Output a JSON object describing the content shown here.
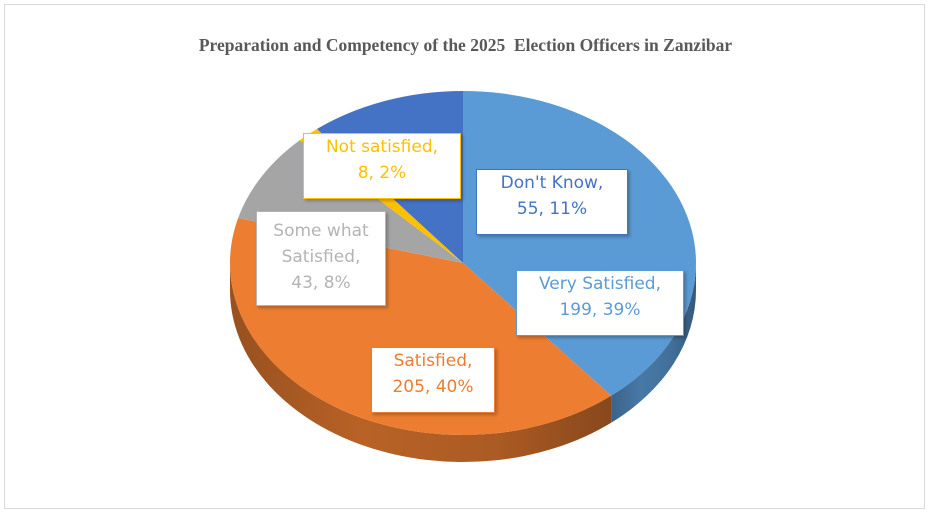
{
  "chart_data": {
    "type": "pie",
    "title": "Preparation and Competency of the 2025  Election Officers in Zanzibar",
    "slices": [
      {
        "name": "Very  Satisfied",
        "value": 199,
        "percent": "39%",
        "color": "#5b9bd5",
        "label_color": "#5b9bd5"
      },
      {
        "name": "Satisfied",
        "value": 205,
        "percent": "40%",
        "color": "#ed7d31",
        "label_color": "#ed7d31"
      },
      {
        "name": "Some what Satisfied",
        "value": 43,
        "percent": "8%",
        "color": "#a5a5a5",
        "label_color": "#b4b4b4"
      },
      {
        "name": "Not satisfied",
        "value": 8,
        "percent": "2%",
        "color": "#ffc000",
        "label_color": "#ffc000"
      },
      {
        "name": "Don't Know",
        "value": 55,
        "percent": "11%",
        "color": "#4472c4",
        "label_color": "#4472c4"
      }
    ],
    "labels": [
      {
        "line1": "Very  Satisfied,",
        "line2": "199, 39%"
      },
      {
        "line1": "Satisfied,",
        "line2": "205, 40%"
      },
      {
        "line1": "Some what",
        "line2": "Satisfied,",
        "line3": "43, 8%"
      },
      {
        "line1": "Not satisfied,",
        "line2": "8, 2%"
      },
      {
        "line1": "Don't Know,",
        "line2": "55, 11%"
      }
    ]
  }
}
